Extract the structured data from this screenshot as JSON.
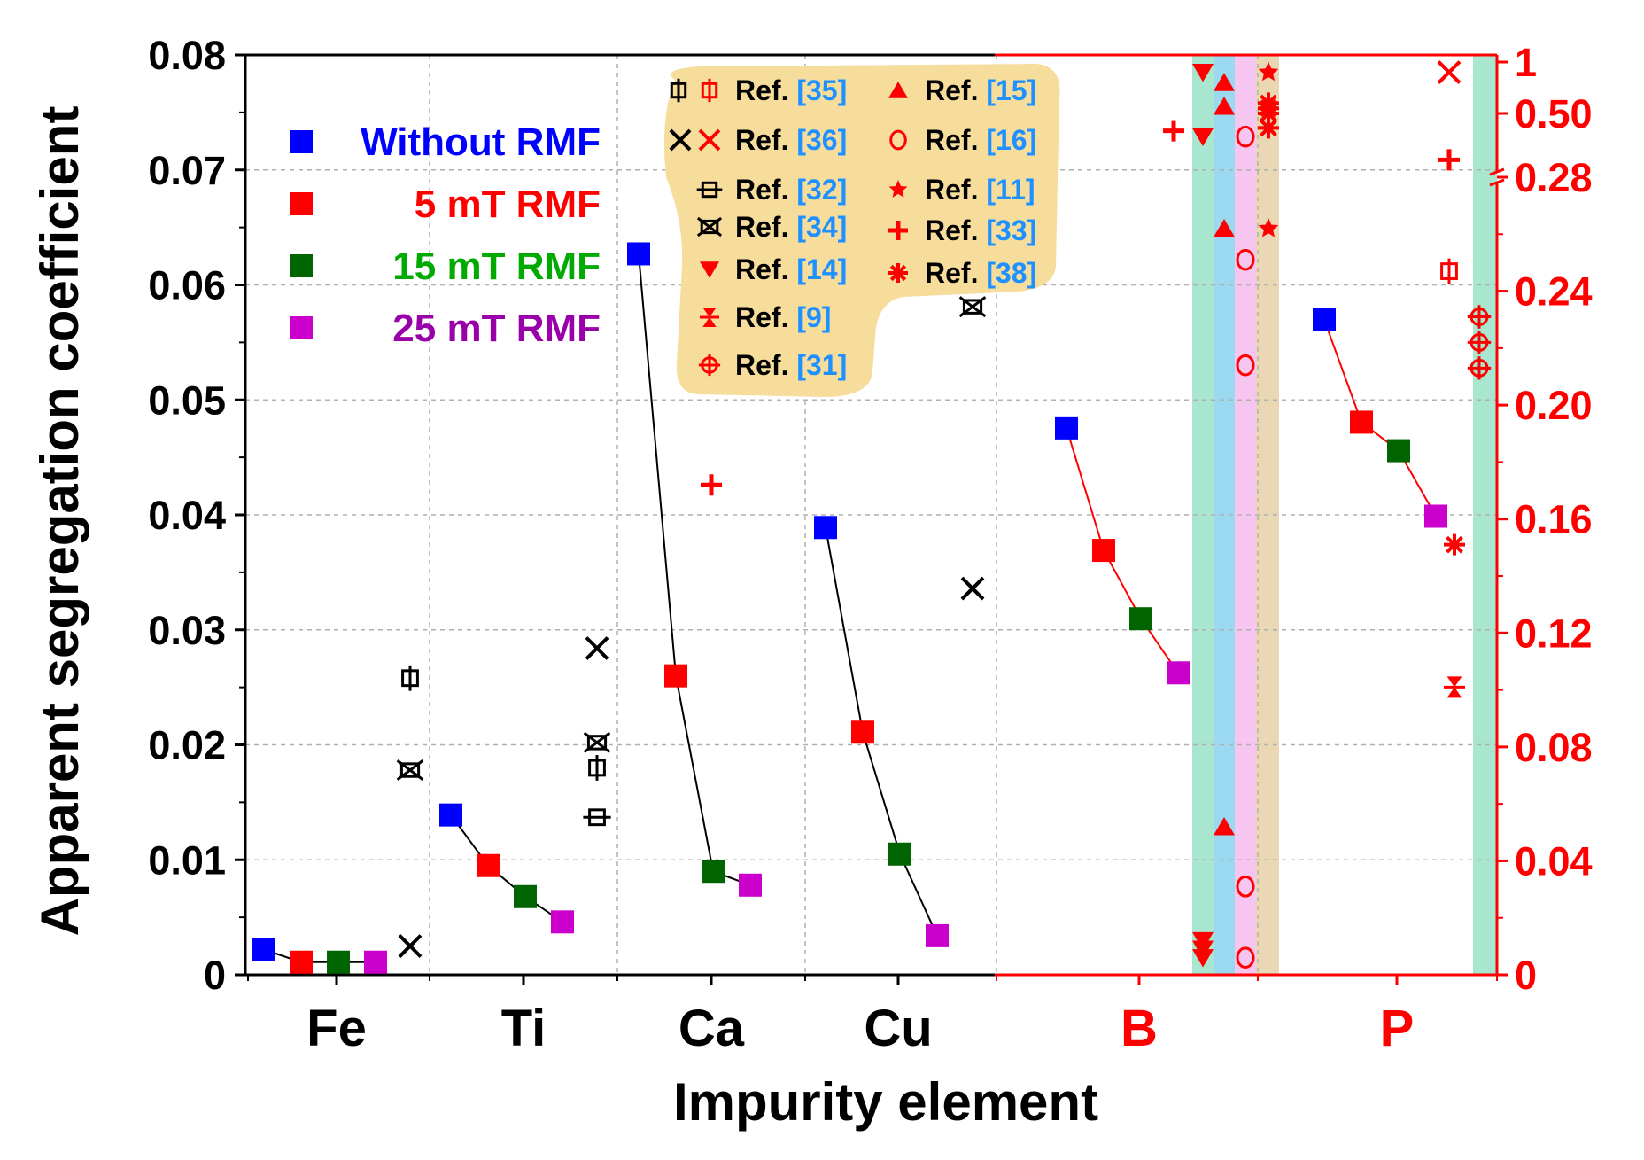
{
  "chart_data": {
    "type": "scatter",
    "title": "",
    "xlabel": "Impurity element",
    "ylabel": "Apparent segregation coefficient",
    "categories": [
      "Fe",
      "Ti",
      "Ca",
      "Cu",
      "B",
      "P"
    ],
    "category_colors": [
      "#000000",
      "#000000",
      "#000000",
      "#000000",
      "#ff0000",
      "#ff0000"
    ],
    "left_axis": {
      "applies_to": [
        "Fe",
        "Ti",
        "Ca",
        "Cu"
      ],
      "ylim": [
        0,
        0.08
      ],
      "ticks": [
        "0",
        "0.01",
        "0.02",
        "0.03",
        "0.04",
        "0.05",
        "0.06",
        "0.07",
        "0.08"
      ],
      "color": "#000000"
    },
    "right_axis": {
      "applies_to": [
        "B",
        "P"
      ],
      "ylim_lower": [
        0,
        0.28
      ],
      "ylim_upper_broken": [
        0.28,
        1
      ],
      "ticks": [
        "0",
        "0.04",
        "0.08",
        "0.12",
        "0.16",
        "0.20",
        "0.24",
        "0.28",
        "0.50",
        "1"
      ],
      "color": "#ff0000"
    },
    "grid": true,
    "series": [
      {
        "name": "Without RMF",
        "color": "#0000ff",
        "label_color": "#0000ff",
        "values": [
          0.0022,
          0.0139,
          0.0627,
          0.0389,
          0.192,
          0.23
        ]
      },
      {
        "name": "5 mT RMF",
        "color": "#ff0000",
        "label_color": "#ff0000",
        "values": [
          0.0011,
          0.0095,
          0.026,
          0.0211,
          0.149,
          0.194
        ]
      },
      {
        "name": "15 mT RMF",
        "color": "#006400",
        "label_color": "#00aa00",
        "values": [
          0.0011,
          0.0068,
          0.009,
          0.0105,
          0.125,
          0.184
        ]
      },
      {
        "name": "25 mT RMF",
        "color": "#cc00cc",
        "label_color": "#9900aa",
        "values": [
          0.0011,
          0.0046,
          0.0078,
          0.0034,
          0.106,
          0.161
        ]
      }
    ],
    "reference_legend": [
      {
        "label": "Ref.",
        "num": "[35]",
        "color": "#000000",
        "symbol": "square-cross"
      },
      {
        "label": "Ref.",
        "num": "[36]",
        "color": "#000000",
        "symbol": "x"
      },
      {
        "label": "Ref.",
        "num": "[32]",
        "color": "#000000",
        "symbol": "square-hbar"
      },
      {
        "label": "Ref.",
        "num": "[34]",
        "color": "#000000",
        "symbol": "square-x"
      },
      {
        "label": "Ref.",
        "num": "[14]",
        "color": "#ff0000",
        "symbol": "triangle-down"
      },
      {
        "label": "Ref.",
        "num": "[9]",
        "color": "#ff0000",
        "symbol": "bowtie"
      },
      {
        "label": "Ref.",
        "num": "[31]",
        "color": "#ff0000",
        "symbol": "circle-cross"
      },
      {
        "label": "Ref.",
        "num": "[15]",
        "color": "#ff0000",
        "symbol": "triangle-up"
      },
      {
        "label": "Ref.",
        "num": "[16]",
        "color": "#ff0000",
        "symbol": "circle-open"
      },
      {
        "label": "Ref.",
        "num": "[11]",
        "color": "#ff0000",
        "symbol": "star"
      },
      {
        "label": "Ref.",
        "num": "[33]",
        "color": "#ff0000",
        "symbol": "plus"
      },
      {
        "label": "Ref.",
        "num": "[38]",
        "color": "#ff0000",
        "symbol": "asterisk"
      }
    ],
    "reference_points": [
      {
        "category": "Fe",
        "ref": "[35]",
        "value": 0.0258,
        "symbol": "square-cross",
        "color": "#000000"
      },
      {
        "category": "Fe",
        "ref": "[34]",
        "value": 0.0178,
        "symbol": "square-x",
        "color": "#000000"
      },
      {
        "category": "Fe",
        "ref": "[36]",
        "value": 0.0025,
        "symbol": "x",
        "color": "#000000"
      },
      {
        "category": "Ti",
        "ref": "[36]",
        "value": 0.0284,
        "symbol": "x",
        "color": "#000000"
      },
      {
        "category": "Ti",
        "ref": "[34]",
        "value": 0.0202,
        "symbol": "square-x",
        "color": "#000000"
      },
      {
        "category": "Ti",
        "ref": "[35]",
        "value": 0.018,
        "symbol": "square-cross",
        "color": "#000000"
      },
      {
        "category": "Ti",
        "ref": "[32]",
        "value": 0.0137,
        "symbol": "square-hbar",
        "color": "#000000"
      },
      {
        "category": "Ca",
        "ref": "[33]",
        "value": 0.0426,
        "symbol": "plus",
        "color": "#ff0000"
      },
      {
        "category": "Cu",
        "ref": "[34]",
        "value": 0.0581,
        "symbol": "square-x",
        "color": "#000000"
      },
      {
        "category": "Cu",
        "ref": "[36]",
        "value": 0.0336,
        "symbol": "x",
        "color": "#000000"
      },
      {
        "category": "B",
        "ref": "[33]",
        "value": 0.44,
        "symbol": "plus",
        "color": "#ff0000"
      },
      {
        "category": "B",
        "ref": "[14]",
        "value": 0.9,
        "symbol": "triangle-down",
        "color": "#ff0000"
      },
      {
        "category": "B",
        "ref": "[14]",
        "value": 0.42,
        "symbol": "triangle-down",
        "color": "#ff0000"
      },
      {
        "category": "B",
        "ref": "[14]",
        "value": 0.012,
        "symbol": "triangle-down",
        "color": "#ff0000"
      },
      {
        "category": "B",
        "ref": "[14]",
        "value": 0.009,
        "symbol": "triangle-down",
        "color": "#ff0000"
      },
      {
        "category": "B",
        "ref": "[14]",
        "value": 0.006,
        "symbol": "triangle-down",
        "color": "#ff0000"
      },
      {
        "category": "B",
        "ref": "[15]",
        "value": 0.8,
        "symbol": "triangle-up",
        "color": "#ff0000"
      },
      {
        "category": "B",
        "ref": "[15]",
        "value": 0.57,
        "symbol": "triangle-up",
        "color": "#ff0000"
      },
      {
        "category": "B",
        "ref": "[15]",
        "value": 0.262,
        "symbol": "triangle-up",
        "color": "#ff0000"
      },
      {
        "category": "B",
        "ref": "[15]",
        "value": 0.052,
        "symbol": "triangle-up",
        "color": "#ff0000"
      },
      {
        "category": "B",
        "ref": "[16]",
        "value": 0.42,
        "symbol": "circle-open",
        "color": "#ff0000"
      },
      {
        "category": "B",
        "ref": "[16]",
        "value": 0.251,
        "symbol": "circle-open",
        "color": "#ff0000"
      },
      {
        "category": "B",
        "ref": "[16]",
        "value": 0.214,
        "symbol": "circle-open",
        "color": "#ff0000"
      },
      {
        "category": "B",
        "ref": "[16]",
        "value": 0.031,
        "symbol": "circle-open",
        "color": "#ff0000"
      },
      {
        "category": "B",
        "ref": "[16]",
        "value": 0.006,
        "symbol": "circle-open",
        "color": "#ff0000"
      },
      {
        "category": "B",
        "ref": "[11]",
        "value": 0.9,
        "symbol": "star",
        "color": "#ff0000"
      },
      {
        "category": "B",
        "ref": "[11]",
        "value": 0.262,
        "symbol": "star",
        "color": "#ff0000"
      },
      {
        "category": "B",
        "ref": "[38]",
        "value": 0.6,
        "symbol": "asterisk",
        "color": "#ff0000"
      },
      {
        "category": "B",
        "ref": "[38]",
        "value": 0.55,
        "symbol": "asterisk",
        "color": "#ff0000"
      },
      {
        "category": "B",
        "ref": "[38]",
        "value": 0.5,
        "symbol": "asterisk",
        "color": "#ff0000"
      },
      {
        "category": "B",
        "ref": "[38]",
        "value": 0.45,
        "symbol": "asterisk",
        "color": "#ff0000"
      },
      {
        "category": "P",
        "ref": "[36]",
        "value": 0.9,
        "symbol": "x",
        "color": "#ff0000"
      },
      {
        "category": "P",
        "ref": "[33]",
        "value": 0.34,
        "symbol": "plus",
        "color": "#ff0000"
      },
      {
        "category": "P",
        "ref": "[35]",
        "value": 0.247,
        "symbol": "square-cross",
        "color": "#ff0000"
      },
      {
        "category": "P",
        "ref": "[38]",
        "value": 0.151,
        "symbol": "asterisk",
        "color": "#ff0000"
      },
      {
        "category": "P",
        "ref": "[9]",
        "value": 0.101,
        "symbol": "bowtie",
        "color": "#ff0000"
      },
      {
        "category": "P",
        "ref": "[31]",
        "value": 0.231,
        "symbol": "circle-cross",
        "color": "#ff0000"
      },
      {
        "category": "P",
        "ref": "[31]",
        "value": 0.222,
        "symbol": "circle-cross",
        "color": "#ff0000"
      },
      {
        "category": "P",
        "ref": "[31]",
        "value": 0.213,
        "symbol": "circle-cross",
        "color": "#ff0000"
      }
    ],
    "shaded_bands": [
      {
        "category": "B",
        "color": "#a8e6cf"
      },
      {
        "category": "B",
        "color": "#9ad9f0"
      },
      {
        "category": "B",
        "color": "#f7c6f0"
      },
      {
        "category": "B",
        "color": "#ead7b4"
      },
      {
        "category": "P",
        "color": "#a8e6cf"
      }
    ]
  }
}
